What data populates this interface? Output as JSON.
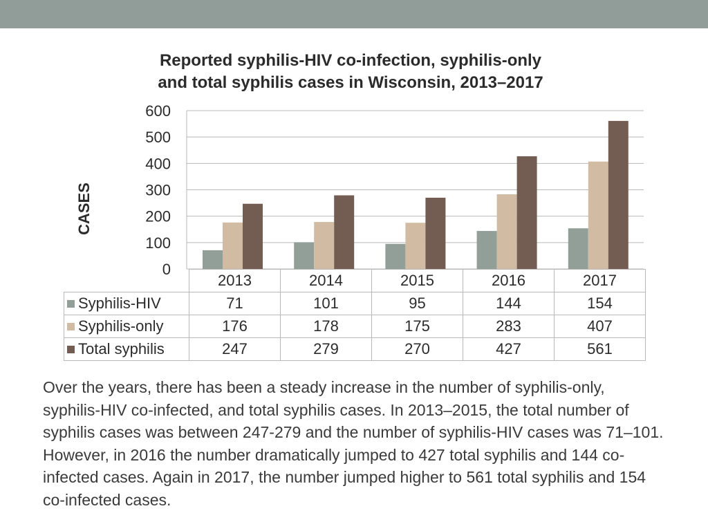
{
  "chart_data": {
    "type": "bar",
    "title_lines": [
      "Reported syphilis-HIV co-infection, syphilis-only",
      "and total syphilis cases in Wisconsin, 2013–2017"
    ],
    "ylabel": "CASES",
    "xlabel": "",
    "ylim": [
      0,
      600
    ],
    "yticks": [
      "600",
      "500",
      "400",
      "300",
      "200",
      "100",
      "0"
    ],
    "ytick_values": [
      600,
      500,
      400,
      300,
      200,
      100,
      0
    ],
    "grid": true,
    "legend": "table-left",
    "categories": [
      "2013",
      "2014",
      "2015",
      "2016",
      "2017"
    ],
    "series": [
      {
        "name": "Syphilis-HIV",
        "color": "#929f98",
        "values": [
          71,
          101,
          95,
          144,
          154
        ]
      },
      {
        "name": "Syphilis-only",
        "color": "#d1bca3",
        "values": [
          176,
          178,
          175,
          283,
          407
        ]
      },
      {
        "name": "Total syphilis",
        "color": "#735d53",
        "values": [
          247,
          279,
          270,
          427,
          561
        ]
      }
    ]
  },
  "table": {
    "rows": [
      {
        "label": "Syphilis-HIV",
        "values": [
          "71",
          "101",
          "95",
          "144",
          "154"
        ]
      },
      {
        "label": "Syphilis-only",
        "values": [
          "176",
          "178",
          "175",
          "283",
          "407"
        ]
      },
      {
        "label": "Total syphilis",
        "values": [
          "247",
          "279",
          "270",
          "427",
          "561"
        ]
      }
    ]
  },
  "body_text": "Over the years, there has been a steady increase in the number of syphilis-only, syphilis-HIV co-infected, and total syphilis cases. In 2013–2015, the total number of syphilis cases was between 247-279 and the number of syphilis-HIV cases was 71–101. However, in 2016 the number dramatically jumped to 427 total syphilis and 144 co-infected cases. Again in 2017, the number jumped higher to 561 total syphilis and 154 co-infected cases.",
  "colors": {
    "header_bar": "#909d98",
    "grid": "#b8b8b8"
  }
}
